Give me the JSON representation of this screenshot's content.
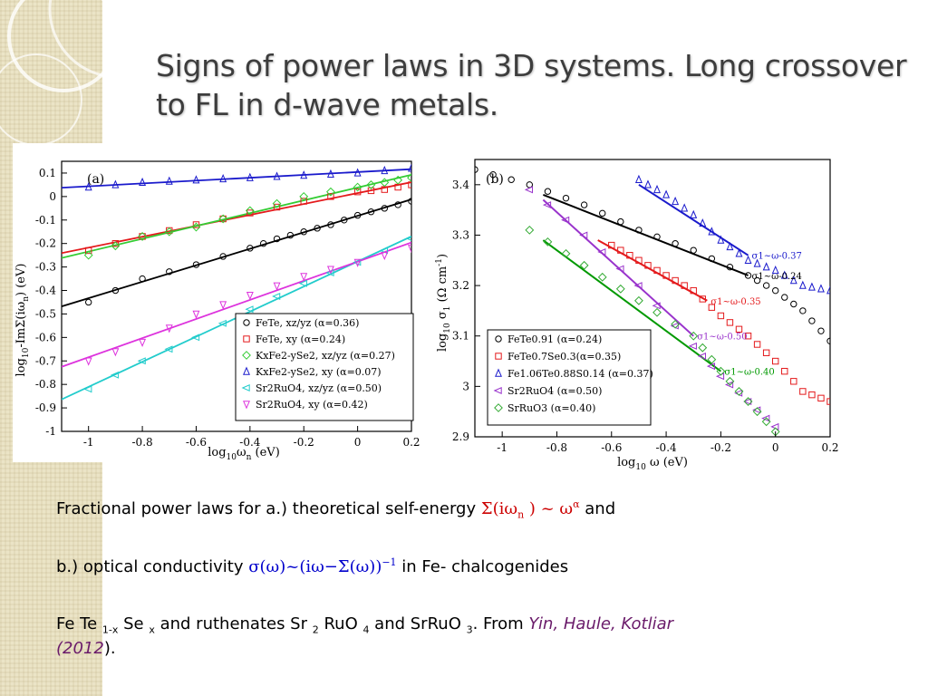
{
  "slide": {
    "title": "Signs of power laws in 3D systems. Long crossover to FL in d-wave metals.",
    "line1": {
      "pre": "Fractional power laws for a.) theoretical self-energy ",
      "f1": "Σ(iω",
      "f1_sub": "n",
      "f2": " ) ~ ω",
      "f2_sup": "α",
      "post": " and"
    },
    "line2": {
      "pre": "b.) optical conductivity ",
      "f1": "σ(ω)~(iω−Σ(ω))",
      "f1_sup": "−1",
      "post": " in Fe- chalcogenides"
    },
    "line3": {
      "a": "Fe Te ",
      "a_sub": "1-x",
      "b": " Se ",
      "b_sub": "x",
      "c": " and ruthenates Sr ",
      "c_sub": "2",
      "d": " RuO ",
      "d_sub": "4",
      "e": " and SrRuO ",
      "e_sub": "3",
      "f": ". From ",
      "cite": "Yin, Haule, Kotliar",
      "cite2": "(2012",
      "g": ")."
    }
  },
  "chart_data": [
    {
      "type": "scatter",
      "panel_label": "(a)",
      "xlabel": "log10ωn (eV)",
      "ylabel": "log10-ImΣ(iωn) (eV)",
      "xlim": [
        -1.1,
        0.2
      ],
      "ylim": [
        -1.0,
        0.15
      ],
      "xticks": [
        "-1",
        "-0.8",
        "-0.6",
        "-0.4",
        "-0.2",
        "0",
        "0.2"
      ],
      "yticks": [
        "0.1",
        "0",
        "-0.1",
        "-0.2",
        "-0.3",
        "-0.4",
        "-0.5",
        "-0.6",
        "-0.7",
        "-0.8",
        "-0.9",
        "-1"
      ],
      "legend_position": "bottom-right",
      "series": [
        {
          "name": "FeTe, xz/yz (α=0.36)",
          "marker": "circle",
          "color": "#000000",
          "fit_line": true,
          "x": [
            -1.0,
            -0.8,
            -0.6,
            -0.4,
            -0.3,
            -0.2,
            -0.1,
            0.0,
            0.1,
            0.2
          ],
          "y": [
            -0.45,
            -0.35,
            -0.29,
            -0.22,
            -0.18,
            -0.15,
            -0.12,
            -0.08,
            -0.05,
            -0.02
          ]
        },
        {
          "name": "FeTe, xy (α=0.24)",
          "marker": "square",
          "color": "#e41a1c",
          "fit_line": true,
          "x": [
            -1.0,
            -0.8,
            -0.6,
            -0.4,
            -0.2,
            0.0,
            0.1,
            0.2
          ],
          "y": [
            -0.23,
            -0.17,
            -0.12,
            -0.07,
            -0.02,
            0.02,
            0.03,
            0.05
          ]
        },
        {
          "name": "KxFe2-ySe2, xz/yz (α=0.27)",
          "marker": "diamond",
          "color": "#33cc33",
          "fit_line": true,
          "x": [
            -1.0,
            -0.8,
            -0.6,
            -0.4,
            -0.2,
            0.0,
            0.1,
            0.2
          ],
          "y": [
            -0.25,
            -0.17,
            -0.13,
            -0.06,
            0.0,
            0.04,
            0.06,
            0.08
          ]
        },
        {
          "name": "KxFe2-ySe2, xy (α=0.07)",
          "marker": "triangle-up",
          "color": "#1a1acc",
          "fit_line": true,
          "x": [
            -1.0,
            -0.8,
            -0.6,
            -0.4,
            -0.2,
            0.0,
            0.2
          ],
          "y": [
            0.04,
            0.06,
            0.07,
            0.08,
            0.09,
            0.1,
            0.12
          ]
        },
        {
          "name": "Sr2RuO4, xz/yz (α=0.50)",
          "marker": "triangle-left",
          "color": "#22cccc",
          "fit_line": true,
          "x": [
            -1.0,
            -0.8,
            -0.6,
            -0.4,
            -0.2,
            0.0,
            0.2
          ],
          "y": [
            -0.82,
            -0.7,
            -0.6,
            -0.48,
            -0.37,
            -0.28,
            -0.18
          ]
        },
        {
          "name": "Sr2RuO4, xy (α=0.42)",
          "marker": "triangle-down",
          "color": "#dd33dd",
          "fit_line": true,
          "x": [
            -1.0,
            -0.8,
            -0.6,
            -0.4,
            -0.2,
            0.0,
            0.2
          ],
          "y": [
            -0.7,
            -0.62,
            -0.5,
            -0.42,
            -0.34,
            -0.28,
            -0.22
          ]
        }
      ],
      "legend": [
        {
          "marker": "circle",
          "color": "#000000",
          "label": "FeTe, xz/yz (α=0.36)"
        },
        {
          "marker": "square",
          "color": "#e41a1c",
          "label": "FeTe, xy (α=0.24)"
        },
        {
          "marker": "diamond",
          "color": "#33cc33",
          "label": "KxFe2-ySe2, xz/yz (α=0.27)"
        },
        {
          "marker": "triangle-up",
          "color": "#1a1acc",
          "label": "KxFe2-ySe2, xy (α=0.07)"
        },
        {
          "marker": "triangle-left",
          "color": "#22cccc",
          "label": "Sr2RuO4, xz/yz (α=0.50)"
        },
        {
          "marker": "triangle-down",
          "color": "#dd33dd",
          "label": "Sr2RuO4, xy (α=0.42)"
        }
      ]
    },
    {
      "type": "scatter",
      "panel_label": "(b)",
      "xlabel": "log10 ω (eV)",
      "ylabel": "log10 σ1 (Ω cm-1)",
      "xlim": [
        -1.1,
        0.2
      ],
      "ylim": [
        2.9,
        3.45
      ],
      "xticks": [
        "-1",
        "-0.8",
        "-0.6",
        "-0.4",
        "-0.2",
        "0",
        "0.2"
      ],
      "yticks": [
        "3.4",
        "3.3",
        "3.2",
        "3.1",
        "3",
        "2.9"
      ],
      "legend_position": "bottom-left",
      "series": [
        {
          "name": "FeTe0.91 (α=0.24)",
          "marker": "circle",
          "color": "#000000",
          "x": [
            -1.1,
            -0.9,
            -0.7,
            -0.5,
            -0.3,
            -0.1,
            0.0,
            0.1,
            0.2
          ],
          "y": [
            3.43,
            3.4,
            3.36,
            3.31,
            3.27,
            3.22,
            3.19,
            3.15,
            3.09
          ]
        },
        {
          "name": "FeTe0.7Se0.3(α=0.35)",
          "marker": "square",
          "color": "#e41a1c",
          "x": [
            -0.6,
            -0.5,
            -0.4,
            -0.3,
            -0.2,
            -0.1,
            0.0,
            0.1,
            0.2
          ],
          "y": [
            3.28,
            3.25,
            3.22,
            3.19,
            3.14,
            3.1,
            3.05,
            2.99,
            2.97
          ]
        },
        {
          "name": "Fe1.06Te0.88S0.14 (α=0.37)",
          "marker": "triangle-up",
          "color": "#1a1acc",
          "x": [
            -0.5,
            -0.4,
            -0.3,
            -0.2,
            -0.1,
            0.0,
            0.1,
            0.2
          ],
          "y": [
            3.41,
            3.38,
            3.34,
            3.29,
            3.25,
            3.23,
            3.2,
            3.19
          ]
        },
        {
          "name": "Sr2RuO4 (α=0.50)",
          "marker": "triangle-left",
          "color": "#9933cc",
          "x": [
            -0.9,
            -0.7,
            -0.5,
            -0.3,
            -0.2,
            -0.1,
            0.0
          ],
          "y": [
            3.39,
            3.3,
            3.2,
            3.08,
            3.02,
            2.97,
            2.92
          ]
        },
        {
          "name": "SrRuO3 (α=0.40)",
          "marker": "diamond",
          "color": "#33aa33",
          "x": [
            -0.9,
            -0.7,
            -0.5,
            -0.3,
            -0.2,
            -0.1,
            0.0
          ],
          "y": [
            3.31,
            3.24,
            3.17,
            3.1,
            3.03,
            2.97,
            2.91
          ]
        }
      ],
      "fit_lines": [
        {
          "color": "#000000",
          "x": [
            -0.85,
            -0.1
          ],
          "y": [
            3.38,
            3.22
          ],
          "label": "σ1~ω-0.24"
        },
        {
          "color": "#1a1acc",
          "x": [
            -0.5,
            -0.1
          ],
          "y": [
            3.4,
            3.26
          ],
          "label": "σ1~ω-0.37"
        },
        {
          "color": "#e41a1c",
          "x": [
            -0.65,
            -0.25
          ],
          "y": [
            3.29,
            3.17
          ],
          "label": "σ1~ω-0.35"
        },
        {
          "color": "#9933cc",
          "x": [
            -0.85,
            -0.3
          ],
          "y": [
            3.37,
            3.1
          ],
          "label": "σ1~ω-0.50"
        },
        {
          "color": "#009900",
          "x": [
            -0.85,
            -0.2
          ],
          "y": [
            3.29,
            3.03
          ],
          "label": "σ1~ω-0.40"
        }
      ],
      "legend": [
        {
          "marker": "circle",
          "color": "#000000",
          "label": "FeTe0.91 (α=0.24)"
        },
        {
          "marker": "square",
          "color": "#e41a1c",
          "label": "FeTe0.7Se0.3(α=0.35)"
        },
        {
          "marker": "triangle-up",
          "color": "#1a1acc",
          "label": "Fe1.06Te0.88S0.14 (α=0.37)"
        },
        {
          "marker": "triangle-left",
          "color": "#9933cc",
          "label": "Sr2RuO4 (α=0.50)"
        },
        {
          "marker": "diamond",
          "color": "#33aa33",
          "label": "SrRuO3 (α=0.40)"
        }
      ]
    }
  ]
}
